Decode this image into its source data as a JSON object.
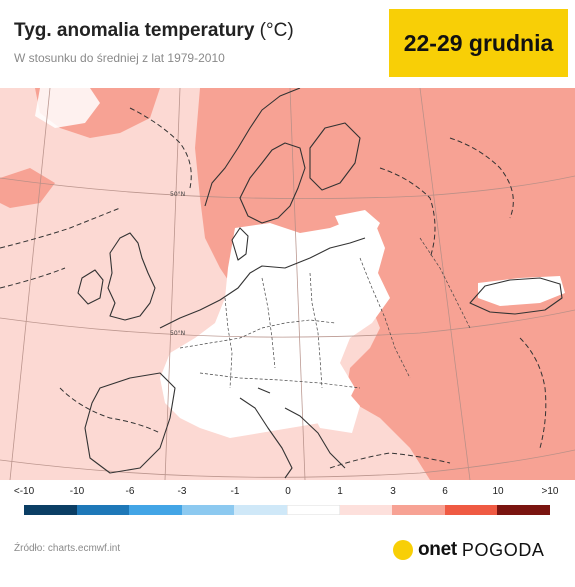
{
  "header": {
    "title": "Tyg. anomalia temperatury",
    "title_unit": "(°C)",
    "subtitle": "W stosunku do średniej z lat 1979-2010",
    "date_range": "22-29 grudnia"
  },
  "map": {
    "lat_labels": [
      "50°N",
      "50°N"
    ]
  },
  "legend": {
    "ticks": [
      "<-10",
      "-10",
      "-6",
      "-3",
      "-1",
      "0",
      "1",
      "3",
      "6",
      "10",
      ">10"
    ],
    "colors": [
      "#0b3e64",
      "#1e78b8",
      "#43a5e6",
      "#8cc9f0",
      "#cfe8f8",
      "#ffffff",
      "#fde0dc",
      "#f7a294",
      "#ef5a43",
      "#c8291c",
      "#7a1410"
    ]
  },
  "footer": {
    "source": "Źródło: charts.ecmwf.int",
    "brand_onet": "onet",
    "brand_pogoda": "POGODA"
  },
  "colors": {
    "badge_yellow": "#f8cf06",
    "brand_dot_yellow": "#f8cf06",
    "anomaly_light": "#fcd9d3",
    "anomaly_mid": "#f7a294",
    "land_neutral": "#ffffff",
    "coastline": "#333333"
  }
}
